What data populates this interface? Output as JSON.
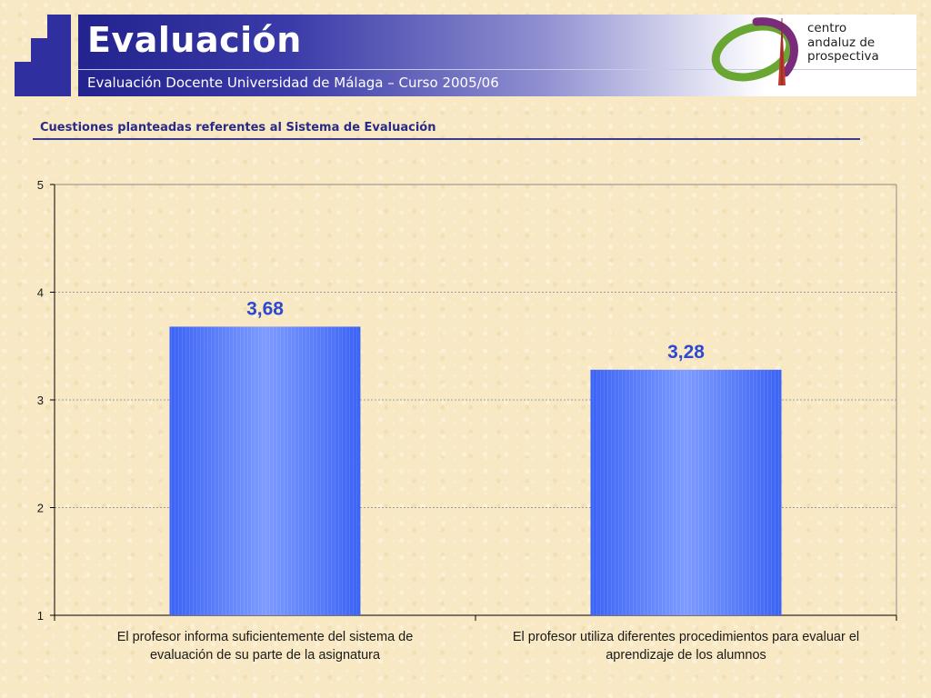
{
  "header": {
    "title": "Evaluación",
    "subtitle": "Evaluación Docente Universidad de Málaga – Curso 2005/06",
    "logo_text": [
      "centro",
      "andaluz de",
      "prospectiva"
    ]
  },
  "section": {
    "title": "Cuestiones planteadas referentes al Sistema de Evaluación"
  },
  "colors": {
    "bar": "#3a66ff",
    "value_label": "#2e49cf",
    "brand_blue": "#2f2fa0"
  },
  "chart_data": {
    "type": "bar",
    "categories": [
      "El profesor informa suficientemente del sistema de evaluación de su parte de la asignatura",
      "El profesor utiliza diferentes procedimientos para evaluar el aprendizaje de los alumnos"
    ],
    "category_lines": [
      [
        "El profesor informa suficientemente del sistema de",
        "evaluación de su parte de la asignatura"
      ],
      [
        "El profesor utiliza diferentes procedimientos para evaluar el",
        "aprendizaje de los alumnos"
      ]
    ],
    "values": [
      3.68,
      3.28
    ],
    "value_labels": [
      "3,68",
      "3,28"
    ],
    "ylim": [
      1,
      5
    ],
    "yticks": [
      "1",
      "2",
      "3",
      "4",
      "5"
    ],
    "grid": true,
    "title": "",
    "xlabel": "",
    "ylabel": ""
  }
}
